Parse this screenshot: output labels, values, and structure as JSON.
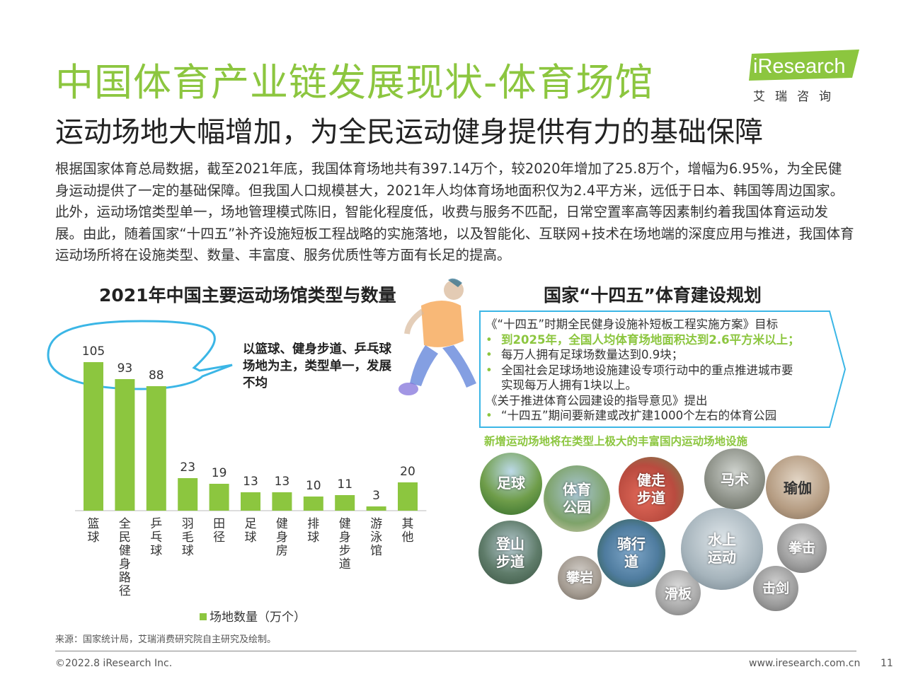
{
  "header": {
    "title": "中国体育产业链发展现状-体育场馆",
    "subtitle": "运动场地大幅增加，为全民运动健身提供有力的基础保障"
  },
  "logo": {
    "name": "iResearch",
    "sub": "艾瑞咨询",
    "color": "#8cc63f"
  },
  "intro": "根据国家体育总局数据，截至2021年底，我国体育场地共有397.14万个，较2020年增加了25.8万个，增幅为6.95%，为全民健身运动提供了一定的基础保障。但我国人口规模甚大，2021年人均体育场地面积仅为2.4平方米，远低于日本、韩国等周边国家。此外，运动场馆类型单一，场地管理模式陈旧，智能化程度低，收费与服务不匹配，日常空置率高等因素制约着我国体育运动发展。由此，随着国家“十四五”补齐设施短板工程战略的实施落地，以及智能化、互联网+技术在场地端的深度应用与推进，我国体育运动场所将在设施类型、数量、丰富度、服务优质性等方面有长足的提高。",
  "left_panel": {
    "title": "2021年中国主要运动场馆类型与数量",
    "bubble": "以篮球、健身步道、乒乓球场地为主，类型单一，发展不均"
  },
  "chart_data": {
    "type": "bar",
    "title": "2021年中国主要运动场馆类型与数量",
    "categories": [
      "篮球",
      "全民健身路径",
      "乒乓球",
      "羽毛球",
      "田径",
      "足球",
      "健身房",
      "排球",
      "健身步道",
      "游泳馆",
      "其他"
    ],
    "series": [
      {
        "name": "场地数量（万个）",
        "values": [
          105,
          93,
          88,
          23,
          19,
          13,
          13,
          10,
          11,
          3,
          20
        ]
      }
    ],
    "color": "#8cc63f",
    "ylim": [
      0,
      115
    ],
    "grid": false,
    "legend": "bottom"
  },
  "right_panel": {
    "title": "国家“十四五”体育建设规划",
    "plan_lines": [
      {
        "bullet": "",
        "text": "《“十四五”时期全民健身设施补短板工程实施方案》目标",
        "highlight": false
      },
      {
        "bullet": "•",
        "text": "到2025年，全国人均体育场地面积达到2.6平方米以上；",
        "highlight": true
      },
      {
        "bullet": "•",
        "text": "每万人拥有足球场数量达到0.9块；",
        "highlight": false
      },
      {
        "bullet": "•",
        "text": "全国社会足球场地设施建设专项行动中的重点推进城市要",
        "highlight": false
      },
      {
        "bullet": "",
        "text": "实现每万人拥有1块以上。",
        "highlight": false,
        "indent": true
      },
      {
        "bullet": "",
        "text": "《关于推进体育公园建设的指导意见》提出",
        "highlight": false
      },
      {
        "bullet": "•",
        "text": "“十四五”期间要新建或改扩建1000个左右的体育公园",
        "highlight": false
      }
    ],
    "note": "新增运动场地将在类型上极大的丰富国内运动场地设施",
    "facilities": [
      "足球",
      "体育公园",
      "健走步道",
      "马术",
      "瑜伽",
      "登山步道",
      "攀岩",
      "骑行道",
      "滑板",
      "水上运动",
      "拳击",
      "击剑"
    ]
  },
  "footer": {
    "source": "来源：国家统计局，艾瑞消费研究院自主研究及绘制。",
    "copyright": "©2022.8 iResearch Inc.",
    "url": "www.iresearch.com.cn",
    "page": "11"
  }
}
